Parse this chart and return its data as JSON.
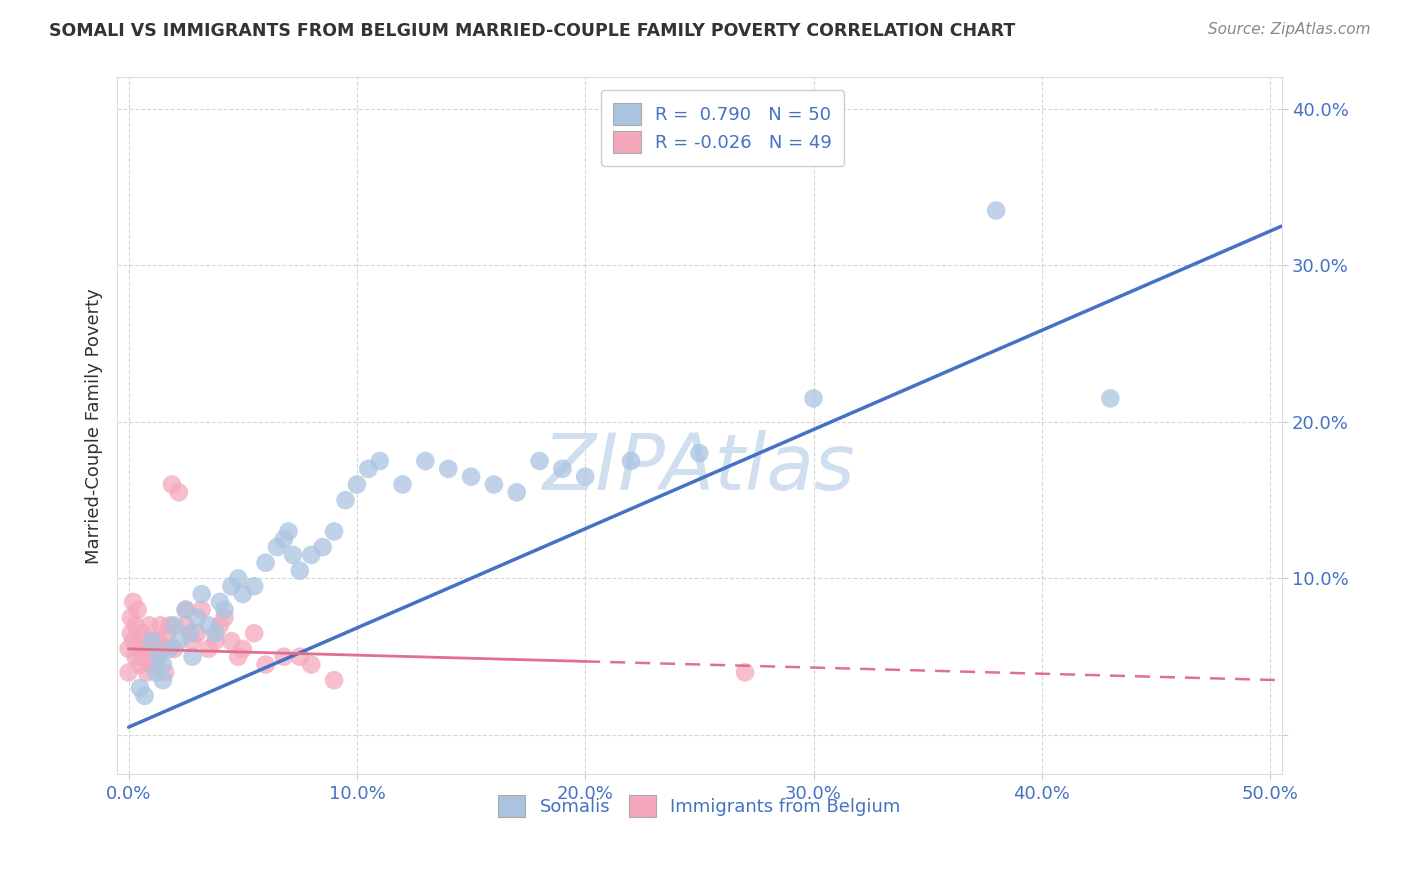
{
  "title": "SOMALI VS IMMIGRANTS FROM BELGIUM MARRIED-COUPLE FAMILY POVERTY CORRELATION CHART",
  "source": "Source: ZipAtlas.com",
  "ylabel_label": "Married-Couple Family Poverty",
  "xlim": [
    -0.005,
    0.505
  ],
  "ylim": [
    -0.025,
    0.42
  ],
  "xticks": [
    0.0,
    0.1,
    0.2,
    0.3,
    0.4,
    0.5
  ],
  "yticks": [
    0.0,
    0.1,
    0.2,
    0.3,
    0.4
  ],
  "xtick_labels": [
    "0.0%",
    "10.0%",
    "20.0%",
    "30.0%",
    "40.0%",
    "50.0%"
  ],
  "ytick_labels": [
    "",
    "10.0%",
    "20.0%",
    "30.0%",
    "40.0%"
  ],
  "legend1_R": "0.790",
  "legend1_N": "50",
  "legend2_R": "-0.026",
  "legend2_N": "49",
  "somali_color": "#aac4e0",
  "belgium_color": "#f5a8bc",
  "somali_line_color": "#4472c4",
  "belgium_line_color": "#e07090",
  "watermark": "ZIPAtlas",
  "watermark_color": "#d0dff0",
  "background_color": "#ffffff",
  "grid_color": "#cccccc",
  "title_color": "#333333",
  "axis_label_color": "#333333",
  "tick_color": "#4472c4",
  "source_color": "#888888",
  "somali_line_x0": 0.0,
  "somali_line_x1": 0.505,
  "somali_line_y0": 0.005,
  "somali_line_y1": 0.325,
  "belgium_line_x0": 0.0,
  "belgium_line_x1": 0.505,
  "belgium_line_y0": 0.055,
  "belgium_line_y1": 0.035,
  "somali_x": [
    0.005,
    0.007,
    0.01,
    0.012,
    0.013,
    0.015,
    0.015,
    0.018,
    0.02,
    0.022,
    0.025,
    0.027,
    0.028,
    0.03,
    0.032,
    0.035,
    0.038,
    0.04,
    0.042,
    0.045,
    0.048,
    0.05,
    0.055,
    0.06,
    0.065,
    0.068,
    0.07,
    0.072,
    0.075,
    0.08,
    0.085,
    0.09,
    0.095,
    0.1,
    0.105,
    0.11,
    0.12,
    0.13,
    0.14,
    0.15,
    0.16,
    0.17,
    0.18,
    0.19,
    0.2,
    0.22,
    0.25,
    0.3,
    0.38,
    0.43
  ],
  "somali_y": [
    0.03,
    0.025,
    0.06,
    0.04,
    0.05,
    0.035,
    0.045,
    0.055,
    0.07,
    0.06,
    0.08,
    0.065,
    0.05,
    0.075,
    0.09,
    0.07,
    0.065,
    0.085,
    0.08,
    0.095,
    0.1,
    0.09,
    0.095,
    0.11,
    0.12,
    0.125,
    0.13,
    0.115,
    0.105,
    0.115,
    0.12,
    0.13,
    0.15,
    0.16,
    0.17,
    0.175,
    0.16,
    0.175,
    0.17,
    0.165,
    0.16,
    0.155,
    0.175,
    0.17,
    0.165,
    0.175,
    0.18,
    0.215,
    0.335,
    0.215
  ],
  "belgium_x": [
    0.0,
    0.0,
    0.001,
    0.001,
    0.002,
    0.002,
    0.003,
    0.003,
    0.004,
    0.005,
    0.005,
    0.006,
    0.006,
    0.007,
    0.008,
    0.008,
    0.009,
    0.01,
    0.01,
    0.011,
    0.012,
    0.013,
    0.014,
    0.015,
    0.016,
    0.017,
    0.018,
    0.019,
    0.02,
    0.022,
    0.025,
    0.025,
    0.028,
    0.03,
    0.032,
    0.035,
    0.038,
    0.04,
    0.042,
    0.045,
    0.048,
    0.05,
    0.055,
    0.06,
    0.068,
    0.075,
    0.08,
    0.09,
    0.27
  ],
  "belgium_y": [
    0.04,
    0.055,
    0.065,
    0.075,
    0.085,
    0.06,
    0.07,
    0.05,
    0.08,
    0.045,
    0.055,
    0.065,
    0.05,
    0.06,
    0.04,
    0.055,
    0.07,
    0.06,
    0.045,
    0.055,
    0.05,
    0.06,
    0.07,
    0.055,
    0.04,
    0.065,
    0.07,
    0.16,
    0.055,
    0.155,
    0.07,
    0.08,
    0.06,
    0.065,
    0.08,
    0.055,
    0.06,
    0.07,
    0.075,
    0.06,
    0.05,
    0.055,
    0.065,
    0.045,
    0.05,
    0.05,
    0.045,
    0.035,
    0.04
  ]
}
